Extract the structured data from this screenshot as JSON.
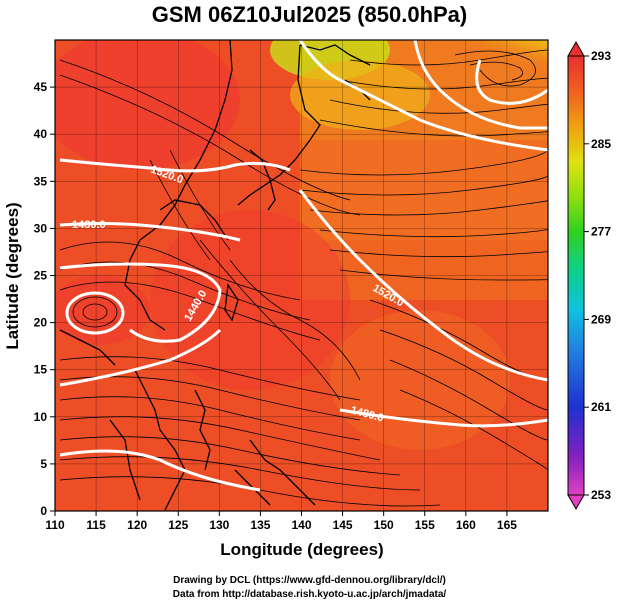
{
  "title": "GSM 06Z10Jul2025 (850.0hPa)",
  "x_axis": {
    "label": "Longitude (degrees)",
    "range": [
      110,
      170
    ],
    "ticks": [
      "110",
      "115",
      "120",
      "125",
      "130",
      "135",
      "140",
      "145",
      "150",
      "155",
      "160",
      "165"
    ]
  },
  "y_axis": {
    "label": "Latitude  (degrees)",
    "range": [
      0,
      50
    ],
    "ticks": [
      "0",
      "5",
      "10",
      "15",
      "20",
      "25",
      "30",
      "35",
      "40",
      "45"
    ]
  },
  "colorbar": {
    "range": [
      253,
      293
    ],
    "ticks": [
      "253",
      "261",
      "269",
      "277",
      "285",
      "293"
    ],
    "colors": [
      "#e040c0",
      "#8020c0",
      "#2030d0",
      "#2080e0",
      "#10c0e0",
      "#10d080",
      "#30d020",
      "#90e010",
      "#e0e010",
      "#f0a010",
      "#f06020",
      "#e83030"
    ]
  },
  "contour_labels": [
    "1520.0",
    "1480.0",
    "1440.0",
    "1520.0",
    "1480.0"
  ],
  "credits": {
    "line1": "Drawing by DCL (https://www.gfd-dennou.org/library/dcl/)",
    "line2": "Data from http://database.rish.kyoto-u.ac.jp/arch/jmadata/"
  },
  "colors": {
    "warm": "#ee4e26",
    "hot": "#f03a30",
    "orange": "#f07a20",
    "yellow_orange": "#f0b018",
    "yellow": "#e4e020",
    "green": "#50d820",
    "contour": "#ffffff",
    "coast": "#000000"
  }
}
